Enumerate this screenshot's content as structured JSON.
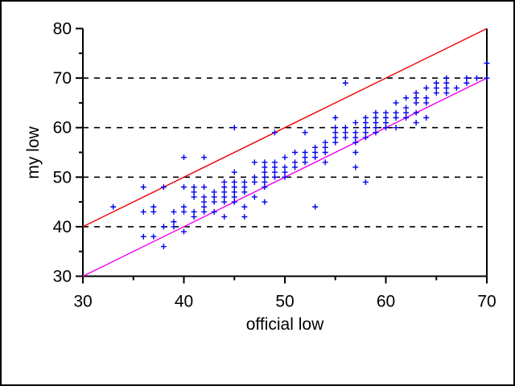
{
  "window": {
    "background": "#ffffff",
    "border_color": "#000000"
  },
  "chart_data": {
    "type": "scatter",
    "title": "",
    "xlabel": "official low",
    "ylabel": "my low",
    "xlim": [
      30,
      70
    ],
    "ylim": [
      30,
      80
    ],
    "x_major_ticks": [
      30,
      40,
      50,
      60,
      70
    ],
    "x_minor_ticks": [
      35,
      45,
      55,
      65
    ],
    "y_major_ticks": [
      30,
      40,
      50,
      60,
      70,
      80
    ],
    "y_minor_ticks": [
      35,
      45,
      55,
      65,
      75
    ],
    "gridlines_y": [
      40,
      50,
      60,
      70
    ],
    "grid_style": "dashed",
    "legend_position": "none",
    "frame": {
      "left": true,
      "bottom": true,
      "right": true,
      "top": false
    },
    "colors": {
      "marker": "#0000ee",
      "upper_line": "#ee0000",
      "identity_line": "#ee00ee",
      "axis": "#000000",
      "grid": "#000000"
    },
    "marker": {
      "shape": "plus",
      "size": 7
    },
    "series": [
      {
        "name": "observations",
        "type": "scatter",
        "color": "#0000ee",
        "points": [
          [
            33,
            44
          ],
          [
            36,
            48
          ],
          [
            36,
            43
          ],
          [
            36,
            38
          ],
          [
            37,
            44
          ],
          [
            37,
            43
          ],
          [
            37,
            38
          ],
          [
            38,
            48
          ],
          [
            38,
            40
          ],
          [
            38,
            36
          ],
          [
            39,
            43
          ],
          [
            39,
            41
          ],
          [
            39,
            40
          ],
          [
            40,
            54
          ],
          [
            40,
            48
          ],
          [
            40,
            44
          ],
          [
            40,
            43
          ],
          [
            40,
            39
          ],
          [
            41,
            48
          ],
          [
            41,
            47
          ],
          [
            41,
            46
          ],
          [
            41,
            43
          ],
          [
            41,
            42
          ],
          [
            42,
            54
          ],
          [
            42,
            48
          ],
          [
            42,
            46
          ],
          [
            42,
            45
          ],
          [
            42,
            44
          ],
          [
            42,
            43
          ],
          [
            43,
            47
          ],
          [
            43,
            46
          ],
          [
            43,
            45
          ],
          [
            43,
            43
          ],
          [
            44,
            49
          ],
          [
            44,
            48
          ],
          [
            44,
            47
          ],
          [
            44,
            46
          ],
          [
            44,
            45
          ],
          [
            44,
            42
          ],
          [
            45,
            60
          ],
          [
            45,
            51
          ],
          [
            45,
            49
          ],
          [
            45,
            48
          ],
          [
            45,
            47
          ],
          [
            45,
            46
          ],
          [
            45,
            45
          ],
          [
            46,
            49
          ],
          [
            46,
            48
          ],
          [
            46,
            47
          ],
          [
            46,
            44
          ],
          [
            46,
            42
          ],
          [
            47,
            53
          ],
          [
            47,
            50
          ],
          [
            47,
            49
          ],
          [
            47,
            46
          ],
          [
            48,
            53
          ],
          [
            48,
            52
          ],
          [
            48,
            51
          ],
          [
            48,
            50
          ],
          [
            48,
            49
          ],
          [
            48,
            48
          ],
          [
            48,
            45
          ],
          [
            49,
            59
          ],
          [
            49,
            53
          ],
          [
            49,
            52
          ],
          [
            49,
            51
          ],
          [
            49,
            50
          ],
          [
            50,
            54
          ],
          [
            50,
            52
          ],
          [
            50,
            51
          ],
          [
            50,
            50
          ],
          [
            51,
            55
          ],
          [
            51,
            53
          ],
          [
            51,
            52
          ],
          [
            52,
            59
          ],
          [
            52,
            55
          ],
          [
            52,
            54
          ],
          [
            52,
            53
          ],
          [
            53,
            56
          ],
          [
            53,
            55
          ],
          [
            53,
            54
          ],
          [
            53,
            44
          ],
          [
            54,
            57
          ],
          [
            54,
            56
          ],
          [
            54,
            55
          ],
          [
            54,
            53
          ],
          [
            55,
            62
          ],
          [
            55,
            60
          ],
          [
            55,
            59
          ],
          [
            55,
            58
          ],
          [
            55,
            57
          ],
          [
            56,
            69
          ],
          [
            56,
            60
          ],
          [
            56,
            59
          ],
          [
            56,
            58
          ],
          [
            57,
            61
          ],
          [
            57,
            59
          ],
          [
            57,
            58
          ],
          [
            57,
            57
          ],
          [
            57,
            55
          ],
          [
            57,
            52
          ],
          [
            58,
            62
          ],
          [
            58,
            61
          ],
          [
            58,
            60
          ],
          [
            58,
            59
          ],
          [
            58,
            58
          ],
          [
            58,
            49
          ],
          [
            59,
            63
          ],
          [
            59,
            62
          ],
          [
            59,
            61
          ],
          [
            59,
            60
          ],
          [
            59,
            59
          ],
          [
            60,
            63
          ],
          [
            60,
            62
          ],
          [
            60,
            61
          ],
          [
            60,
            60
          ],
          [
            61,
            65
          ],
          [
            61,
            63
          ],
          [
            61,
            62
          ],
          [
            61,
            60
          ],
          [
            62,
            66
          ],
          [
            62,
            64
          ],
          [
            62,
            63
          ],
          [
            62,
            62
          ],
          [
            63,
            67
          ],
          [
            63,
            66
          ],
          [
            63,
            65
          ],
          [
            63,
            63
          ],
          [
            63,
            61
          ],
          [
            64,
            68
          ],
          [
            64,
            66
          ],
          [
            64,
            65
          ],
          [
            64,
            62
          ],
          [
            65,
            69
          ],
          [
            65,
            68
          ],
          [
            65,
            67
          ],
          [
            66,
            70
          ],
          [
            66,
            69
          ],
          [
            66,
            68
          ],
          [
            66,
            67
          ],
          [
            67,
            68
          ],
          [
            68,
            70
          ],
          [
            68,
            69
          ],
          [
            69,
            70
          ],
          [
            70,
            73
          ],
          [
            70,
            70
          ]
        ]
      },
      {
        "name": "upper-reference-line (y = x + 10)",
        "type": "line",
        "color": "#ee0000",
        "from": [
          30,
          40
        ],
        "to": [
          70,
          80
        ]
      },
      {
        "name": "identity-line (y = x)",
        "type": "line",
        "color": "#ee00ee",
        "from": [
          30,
          30
        ],
        "to": [
          70,
          70
        ]
      }
    ]
  }
}
